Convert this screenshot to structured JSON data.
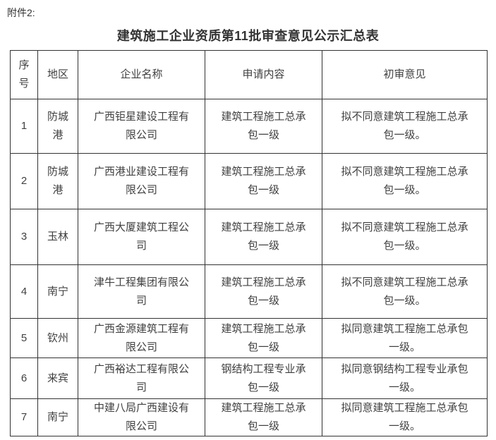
{
  "page": {
    "attachment_label": "附件2:",
    "title": "建筑施工企业资质第11批审查意见公示汇总表"
  },
  "table": {
    "headers": [
      "序\n号",
      "地区",
      "企业名称",
      "申请内容",
      "初审意见"
    ],
    "rows": [
      {
        "no": "1",
        "region": "防城\n港",
        "company": "广西钜星建设工程有\n限公司",
        "application": "建筑工程施工总承\n包一级",
        "opinion": "拟不同意建筑工程施工总承\n包一级。"
      },
      {
        "no": "2",
        "region": "防城\n港",
        "company": "广西港业建设工程有\n限公司",
        "application": "建筑工程施工总承\n包一级",
        "opinion": "拟不同意建筑工程施工总承\n包一级。"
      },
      {
        "no": "3",
        "region": "玉林",
        "company": "广西大厦建筑工程公\n司",
        "application": "建筑工程施工总承\n包一级",
        "opinion": "拟不同意建筑工程施工总承\n包一级。"
      },
      {
        "no": "4",
        "region": "南宁",
        "company": "津牛工程集团有限公\n司",
        "application": "建筑工程施工总承\n包一级",
        "opinion": "拟不同意建筑工程施工总承\n包一级。"
      },
      {
        "no": "5",
        "region": "钦州",
        "company": "广西金源建筑工程有\n限公司",
        "application": "建筑工程施工总承\n包一级",
        "opinion": "拟同意建筑工程施工总承包\n一级。"
      },
      {
        "no": "6",
        "region": "来宾",
        "company": "广西裕达工程有限公\n司",
        "application": "钢结构工程专业承\n包一级",
        "opinion": "拟同意钢结构工程专业承包\n一级。"
      },
      {
        "no": "7",
        "region": "南宁",
        "company": "中建八局广西建设有\n限公司",
        "application": "建筑工程施工总承\n包一级",
        "opinion": "拟同意建筑工程施工总承包\n一级。"
      }
    ]
  }
}
